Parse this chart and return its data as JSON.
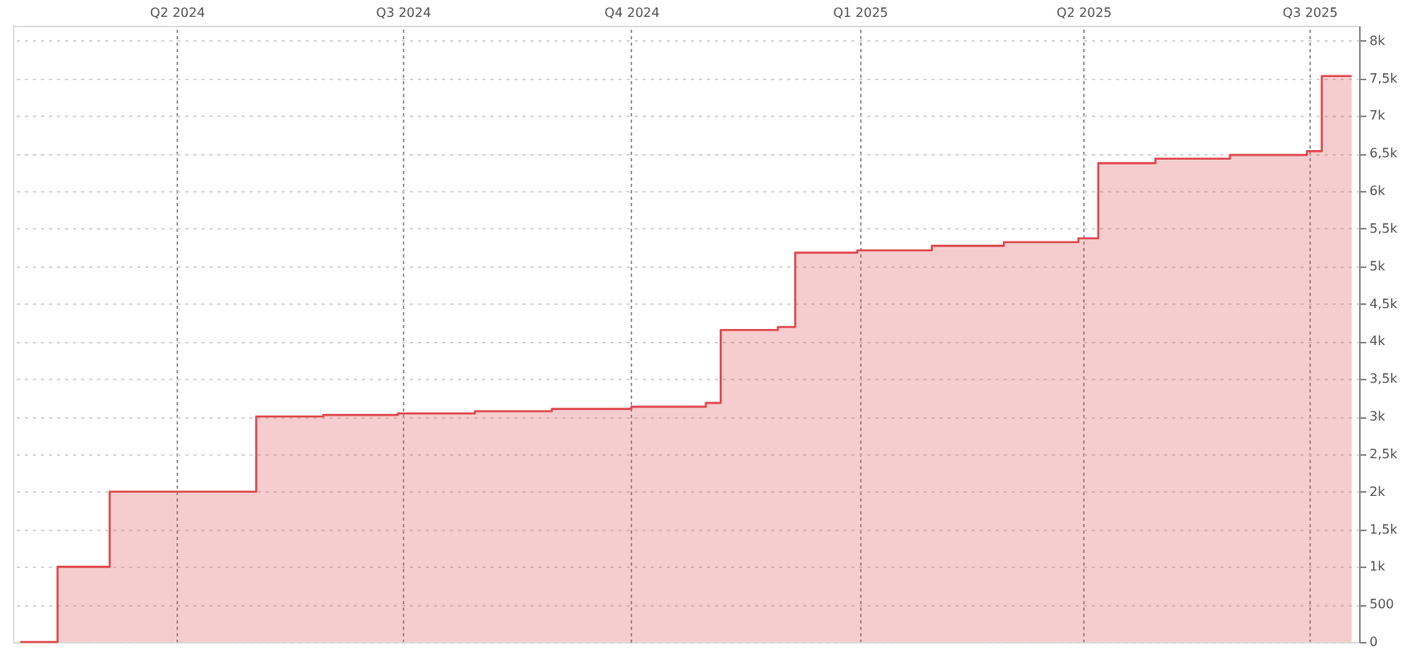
{
  "chart_data": {
    "type": "step",
    "x": [
      "2024-01-29",
      "2024-02-13",
      "2024-03-05",
      "2024-05-03",
      "2024-05-30",
      "2024-06-29",
      "2024-07-30",
      "2024-08-30",
      "2024-10-01",
      "2024-10-31",
      "2024-11-06",
      "2024-11-29",
      "2024-12-06",
      "2024-12-31",
      "2025-01-30",
      "2025-02-28",
      "2025-03-30",
      "2025-04-07",
      "2025-04-30",
      "2025-05-30",
      "2025-06-30",
      "2025-07-06",
      "2025-07-18"
    ],
    "series": [
      {
        "color": "#e04a4e",
        "values": [
          0,
          1000,
          2000,
          3000,
          3020,
          3040,
          3070,
          3100,
          3130,
          3180,
          4150,
          4190,
          5180,
          5210,
          5270,
          5320,
          5370,
          6370,
          6430,
          6480,
          6530,
          7530,
          7530
        ]
      }
    ],
    "xlim": [
      "2024-01-26",
      "2025-07-21"
    ],
    "xticks": [
      {
        "value": "2024-04-01",
        "label": "Q2 2024"
      },
      {
        "value": "2024-07-01",
        "label": "Q3 2024"
      },
      {
        "value": "2024-10-01",
        "label": "Q4 2024"
      },
      {
        "value": "2025-01-01",
        "label": "Q1 2025"
      },
      {
        "value": "2025-04-01",
        "label": "Q2 2025"
      },
      {
        "value": "2025-07-01",
        "label": "Q3 2025"
      }
    ],
    "ylim": [
      0,
      8200
    ],
    "yticks": [
      0,
      500,
      {
        "value": 1000,
        "label": "1k"
      },
      {
        "value": 1500,
        "label": "1,5k"
      },
      {
        "value": 2000,
        "label": "2k"
      },
      {
        "value": 2500,
        "label": "2,5k"
      },
      {
        "value": 3000,
        "label": "3k"
      },
      {
        "value": 3500,
        "label": "3,5k"
      },
      {
        "value": 4000,
        "label": "4k"
      },
      {
        "value": 4500,
        "label": "4,5k"
      },
      {
        "value": 5000,
        "label": "5k"
      },
      {
        "value": 5500,
        "label": "5,5k"
      },
      {
        "value": 6000,
        "label": "6k"
      },
      {
        "value": 6500,
        "label": "6,5k"
      },
      {
        "value": 7000,
        "label": "7k"
      },
      {
        "value": 7500,
        "label": "7,5k"
      },
      {
        "value": 8000,
        "label": "8k"
      }
    ],
    "grid": true,
    "line_style": "solid"
  }
}
